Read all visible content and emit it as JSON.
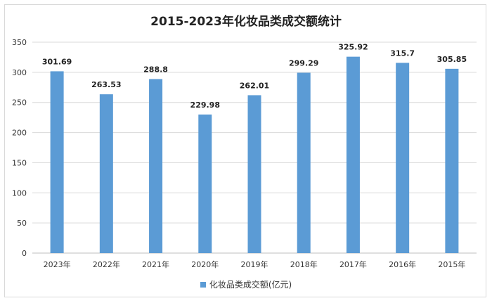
{
  "chart_data": {
    "type": "bar",
    "title": "2015-2023年化妆品类成交额统计",
    "categories": [
      "2023年",
      "2022年",
      "2021年",
      "2020年",
      "2019年",
      "2018年",
      "2017年",
      "2016年",
      "2015年"
    ],
    "series": [
      {
        "name": "化妆品类成交额(亿元)",
        "values": [
          301.69,
          263.53,
          288.8,
          229.98,
          262.01,
          299.29,
          325.92,
          315.7,
          305.85
        ],
        "color": "#5b9bd5"
      }
    ],
    "ylim": [
      0,
      350
    ],
    "yticks": [
      0,
      50,
      100,
      150,
      200,
      250,
      300,
      350
    ],
    "grid": true,
    "legend": "bottom"
  }
}
